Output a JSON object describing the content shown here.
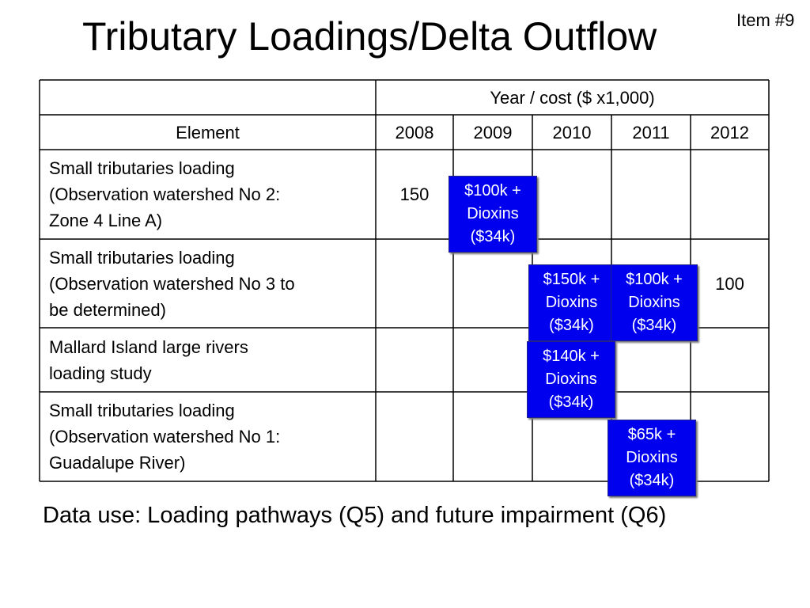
{
  "title": "Tributary Loadings/Delta Outflow",
  "item_label": "Item #9",
  "table": {
    "group_header": "Year / cost ($ x1,000)",
    "element_header": "Element",
    "years": [
      "2008",
      "2009",
      "2010",
      "2011",
      "2012"
    ],
    "rows": [
      {
        "element_lines": [
          "Small tributaries loading",
          "(Observation watershed No 2:",
          "Zone 4 Line A)"
        ],
        "values": [
          "150",
          "",
          "",
          "",
          ""
        ]
      },
      {
        "element_lines": [
          "Small tributaries loading",
          "(Observation watershed No 3 to",
          "be determined)"
        ],
        "values": [
          "",
          "",
          "",
          "",
          "100"
        ]
      },
      {
        "element_lines": [
          "Mallard Island large rivers",
          "loading study"
        ],
        "values": [
          "",
          "",
          "",
          "",
          ""
        ]
      },
      {
        "element_lines": [
          "Small tributaries loading",
          "(Observation watershed No 1:",
          "Guadalupe River)"
        ],
        "values": [
          "",
          "",
          "",
          "",
          ""
        ]
      }
    ]
  },
  "cost_boxes": [
    {
      "row": 1,
      "year": "2009",
      "lines": [
        "$100k +",
        "Dioxins",
        "($34k)"
      ]
    },
    {
      "row": 2,
      "year": "2010",
      "lines": [
        "$150k +",
        "Dioxins",
        "($34k)"
      ]
    },
    {
      "row": 2,
      "year": "2011",
      "lines": [
        "$100k +",
        "Dioxins",
        "($34k)"
      ]
    },
    {
      "row": 3,
      "year": "2010",
      "lines": [
        "$140k +",
        "Dioxins",
        "($34k)"
      ]
    },
    {
      "row": 4,
      "year": "2011",
      "lines": [
        "$65k +",
        "Dioxins",
        "($34k)"
      ]
    }
  ],
  "colors": {
    "box_fill": "#0000ee",
    "box_text": "#ffffff",
    "text": "#000000"
  },
  "footer": "Data use: Loading pathways (Q5) and future impairment (Q6)"
}
